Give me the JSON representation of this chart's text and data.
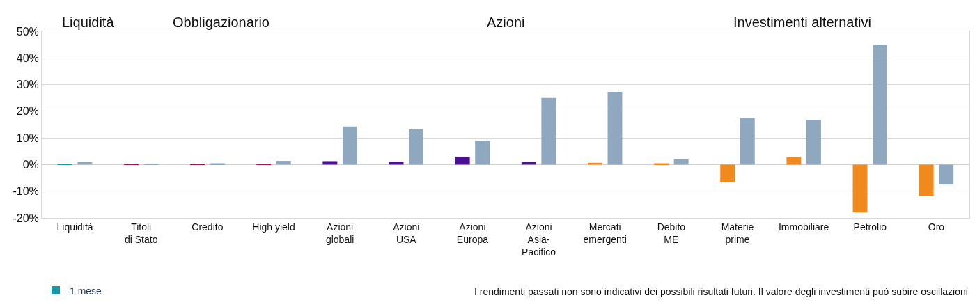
{
  "chart_data": {
    "type": "bar",
    "categories": [
      "Liquidità",
      "Titoli\ndi Stato",
      "Credito",
      "High yield",
      "Azioni\nglobali",
      "Azioni\nUSA",
      "Azioni\nEuropa",
      "Azioni\nAsia-\nPacifico",
      "Mercati\nemergenti",
      "Debito\nME",
      "Materie\nprime",
      "Immobiliare",
      "Petrolio",
      "Oro"
    ],
    "series": [
      {
        "name": "1 mese",
        "colors": [
          "#1a95a8",
          "#a0105c",
          "#a0105c",
          "#a0105c",
          "#4b0f96",
          "#4b0f96",
          "#4b0f96",
          "#4b0f96",
          "#f08a1c",
          "#f08a1c",
          "#f08a1c",
          "#f08a1c",
          "#f08a1c",
          "#f08a1c"
        ],
        "values": [
          0.1,
          0.1,
          0.1,
          0.2,
          1.3,
          1.1,
          3.0,
          1.0,
          0.7,
          0.5,
          -6.7,
          2.8,
          -18,
          -11.8
        ]
      },
      {
        "color": "#8fa8bf",
        "values": [
          1.0,
          0.1,
          0.5,
          1.4,
          14.3,
          13.3,
          9.0,
          25.0,
          27.3,
          2.0,
          17.5,
          16.8,
          45.0,
          -7.5
        ]
      }
    ],
    "ylim": [
      -20,
      50
    ],
    "yticks": [
      {
        "value": -20,
        "label": "-20%"
      },
      {
        "value": -10,
        "label": "-10%"
      },
      {
        "value": 0,
        "label": "0%"
      },
      {
        "value": 10,
        "label": "10%"
      },
      {
        "value": 20,
        "label": "20%"
      },
      {
        "value": 30,
        "label": "30%"
      },
      {
        "value": 40,
        "label": "40%"
      },
      {
        "value": 50,
        "label": "50%"
      }
    ],
    "grid": "y",
    "legend": "bottom left",
    "annotations": [
      "Liquidità",
      "Obbligazionario",
      "Azioni",
      "Investimenti alternativi",
      "I rendimenti passati non sono indicativi dei possibili risultati futuri. Il valore degli investimenti può subire oscillazioni"
    ]
  }
}
